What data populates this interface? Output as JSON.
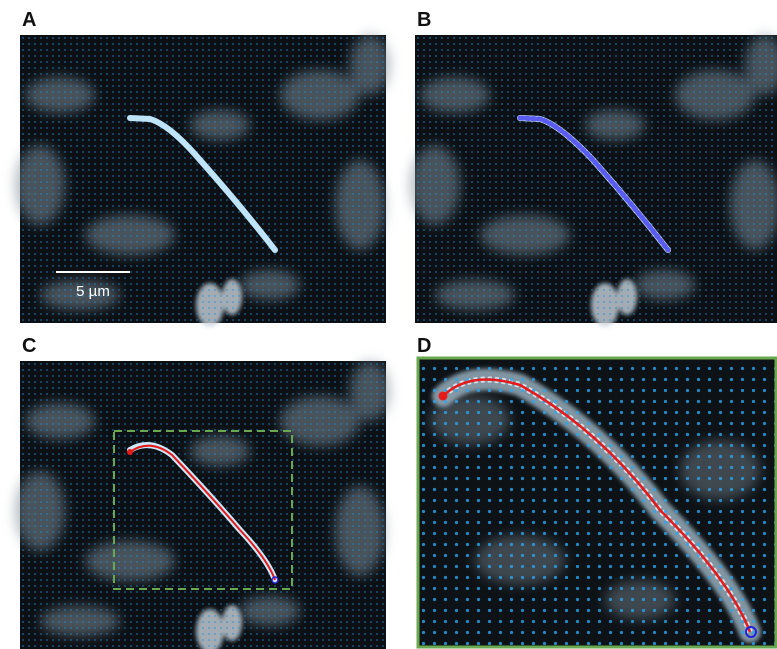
{
  "panels": [
    {
      "label": "A",
      "scale_bar": "5 µm"
    },
    {
      "label": "B"
    },
    {
      "label": "C"
    },
    {
      "label": "D"
    }
  ]
}
